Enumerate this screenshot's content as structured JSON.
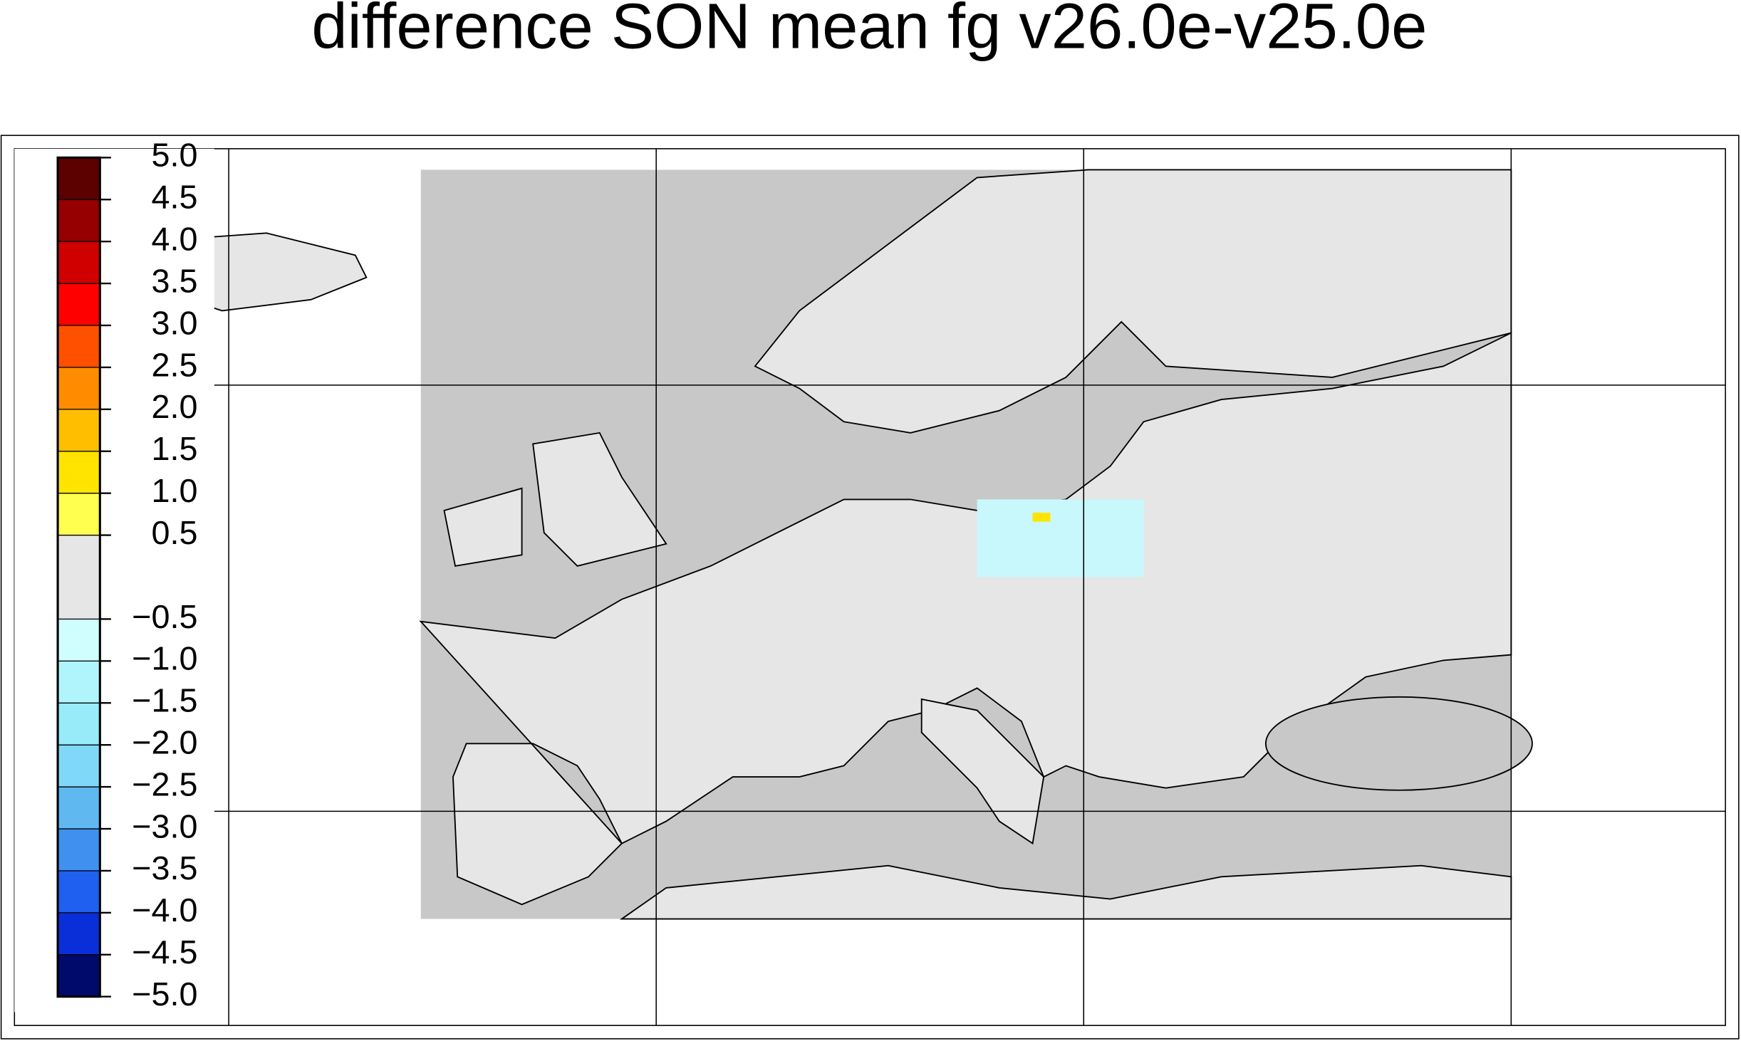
{
  "chart_data": {
    "type": "colorbar",
    "title": "difference SON mean fg v26.0e-v25.0e",
    "ylim": [
      -5,
      5
    ],
    "yticks": [
      {
        "value": -5,
        "label": "−5.0"
      },
      {
        "value": -4.5,
        "label": "−4.5"
      },
      {
        "value": -4,
        "label": "−4.0"
      },
      {
        "value": -3.5,
        "label": "−3.5"
      },
      {
        "value": -3,
        "label": "−3.0"
      },
      {
        "value": -2.5,
        "label": "−2.5"
      },
      {
        "value": -2,
        "label": "−2.0"
      },
      {
        "value": -1.5,
        "label": "−1.5"
      },
      {
        "value": -1,
        "label": "−1.0"
      },
      {
        "value": -0.5,
        "label": "−0.5"
      },
      0.5,
      {
        "value": 1,
        "label": "1.0"
      },
      1.5,
      {
        "value": 2,
        "label": "2.0"
      },
      2.5,
      {
        "value": 3,
        "label": "3.0"
      },
      3.5,
      {
        "value": 4,
        "label": "4.0"
      },
      4.5,
      {
        "value": 5,
        "label": "5.0"
      }
    ],
    "colors": [
      "#000a6a",
      "#0a2fd8",
      "#2060f0",
      "#4090f0",
      "#60b8f0",
      "#80d8f8",
      "#98ebf8",
      "#b0f5fb",
      "#d0fefe",
      "#e6e6e6",
      "#ffff50",
      "#ffe400",
      "#ffbe00",
      "#ff8c00",
      "#ff5000",
      "#ff0000",
      "#d00000",
      "#960000",
      "#5c0000"
    ]
  }
}
